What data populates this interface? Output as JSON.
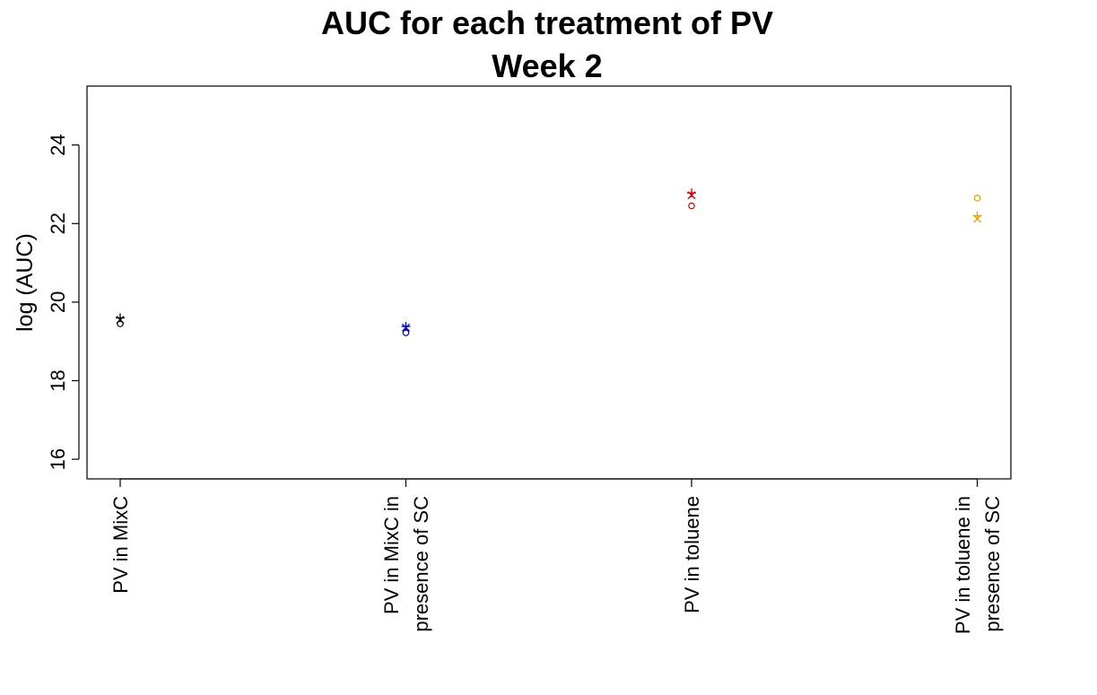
{
  "chart_data": {
    "type": "scatter",
    "title": [
      "AUC for each treatment of PV",
      "Week 2"
    ],
    "xlabel": "",
    "ylabel": "log (AUC)",
    "ylim": [
      15.5,
      25.5
    ],
    "yticks": [
      16,
      18,
      20,
      22,
      24
    ],
    "grid": false,
    "categories": [
      [
        "PV in MixC"
      ],
      [
        "PV in MixC in",
        "presence of SC"
      ],
      [
        "PV in toluene"
      ],
      [
        "PV in toluene in",
        "presence of SC"
      ]
    ],
    "series": [
      {
        "marker": "circle",
        "values": [
          19.45,
          19.22,
          22.45,
          22.65
        ]
      },
      {
        "marker": "cross",
        "values": [
          19.6,
          19.38,
          22.78,
          22.2
        ]
      },
      {
        "marker": "x",
        "values": [
          19.55,
          19.35,
          22.72,
          22.12
        ]
      }
    ],
    "colors": [
      "#000000",
      "#0000cd",
      "#cd0000",
      "#e69f00"
    ]
  }
}
